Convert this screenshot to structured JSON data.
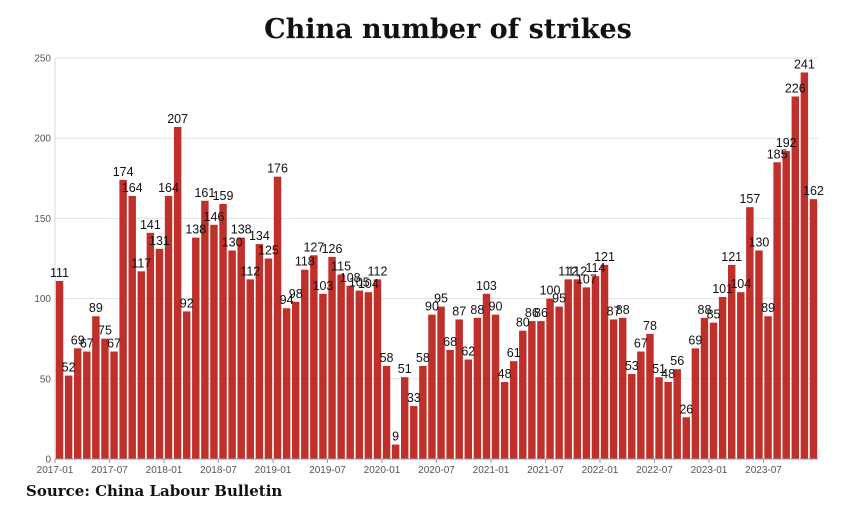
{
  "source": "Source: China Labour Bulletin",
  "chart_data": {
    "type": "bar",
    "title": "China number of strikes",
    "xlabel": "",
    "ylabel": "",
    "ylim": [
      0,
      250
    ],
    "yticks": [
      0,
      50,
      100,
      150,
      200,
      250
    ],
    "grid": "horizontal",
    "bar_color": "#c0302b",
    "x_tick_labels": [
      "2017-01",
      "2017-07",
      "2018-01",
      "2018-07",
      "2019-01",
      "2019-07",
      "2020-01",
      "2020-07",
      "2021-01",
      "2021-07",
      "2022-01",
      "2022-07",
      "2023-01",
      "2023-07"
    ],
    "categories": [
      "2017-01",
      "2017-02",
      "2017-03",
      "2017-04",
      "2017-05",
      "2017-06",
      "2017-07",
      "2017-08",
      "2017-09",
      "2017-10",
      "2017-11",
      "2017-12",
      "2018-01",
      "2018-02",
      "2018-03",
      "2018-04",
      "2018-05",
      "2018-06",
      "2018-07",
      "2018-08",
      "2018-09",
      "2018-10",
      "2018-11",
      "2018-12",
      "2019-01",
      "2019-02",
      "2019-03",
      "2019-04",
      "2019-05",
      "2019-06",
      "2019-07",
      "2019-08",
      "2019-09",
      "2019-10",
      "2019-11",
      "2019-12",
      "2020-01",
      "2020-02",
      "2020-03",
      "2020-04",
      "2020-05",
      "2020-06",
      "2020-07",
      "2020-08",
      "2020-09",
      "2020-10",
      "2020-11",
      "2020-12",
      "2021-01",
      "2021-02",
      "2021-03",
      "2021-04",
      "2021-05",
      "2021-06",
      "2021-07",
      "2021-08",
      "2021-09",
      "2021-10",
      "2021-11",
      "2021-12",
      "2022-01",
      "2022-02",
      "2022-03",
      "2022-04",
      "2022-05",
      "2022-06",
      "2022-07",
      "2022-08",
      "2022-09",
      "2022-10",
      "2022-11",
      "2022-12",
      "2023-01",
      "2023-02",
      "2023-03",
      "2023-04",
      "2023-05",
      "2023-06",
      "2023-07",
      "2023-08",
      "2023-09",
      "2023-10",
      "2023-11",
      "2023-12"
    ],
    "values": [
      111,
      52,
      69,
      67,
      89,
      75,
      67,
      174,
      164,
      117,
      141,
      131,
      164,
      207,
      92,
      138,
      161,
      146,
      159,
      130,
      138,
      112,
      134,
      125,
      176,
      94,
      98,
      118,
      127,
      103,
      126,
      115,
      108,
      105,
      104,
      112,
      58,
      9,
      51,
      33,
      58,
      90,
      95,
      68,
      87,
      62,
      88,
      103,
      90,
      48,
      61,
      80,
      86,
      86,
      100,
      95,
      112,
      112,
      107,
      114,
      121,
      87,
      88,
      53,
      67,
      78,
      51,
      48,
      56,
      26,
      69,
      88,
      85,
      101,
      121,
      104,
      157,
      130,
      89,
      185,
      192,
      226,
      241,
      162
    ],
    "data_labels": [
      "111",
      "52",
      "69",
      "67",
      "89",
      "75",
      "67",
      "174",
      "164",
      "117",
      "141",
      "131",
      "164",
      "207",
      "92",
      "138",
      "161",
      "146",
      "159",
      "130",
      "138",
      "112",
      "134",
      "125",
      "176",
      "94",
      "98",
      "118",
      "127",
      "103",
      "126",
      "115",
      "108",
      "105",
      "104",
      "112",
      "58",
      "9",
      "51",
      "33",
      "58",
      "90",
      "95",
      "68",
      "87",
      "62",
      "88",
      "103",
      "90",
      "48",
      "61",
      "80",
      "86",
      "86",
      "100",
      "95",
      "112",
      "112",
      "107",
      "114",
      "121",
      "87",
      "88",
      "53",
      "67",
      "78",
      "51",
      "48",
      "56",
      "26",
      "69",
      "88",
      "85",
      "101",
      "121",
      "104",
      "157",
      "130",
      "89",
      "185",
      "192",
      "226",
      "241",
      "162"
    ]
  }
}
